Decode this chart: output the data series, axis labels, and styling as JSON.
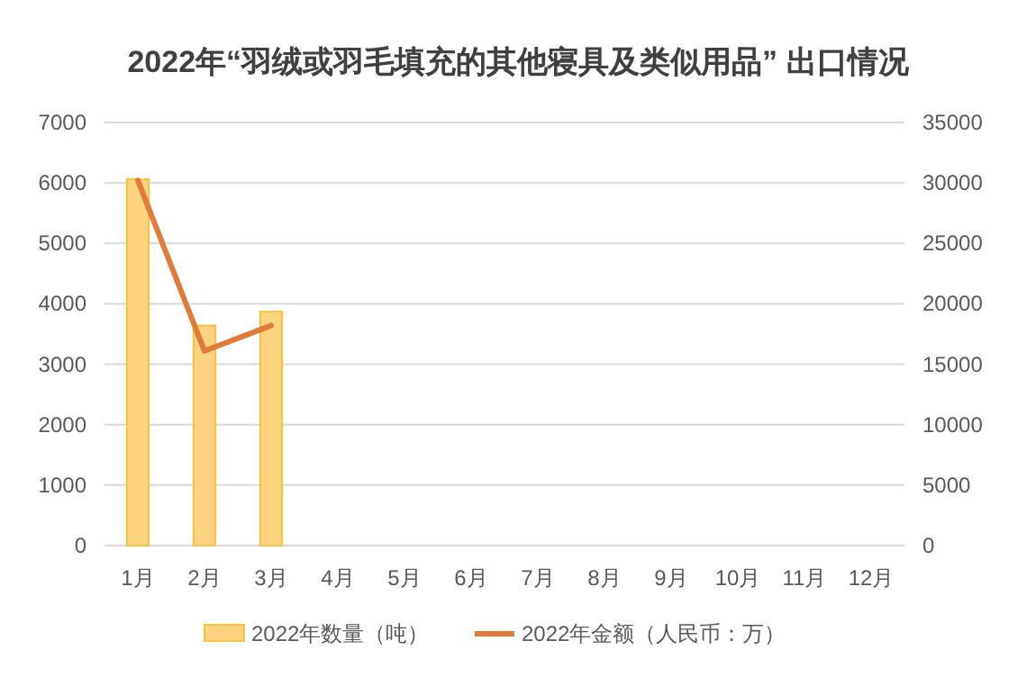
{
  "chart_data": {
    "type": "bar",
    "title": "2022年“羽绒或羽毛填充的其他寝具及类似用品” 出口情况",
    "categories": [
      "1月",
      "2月",
      "3月",
      "4月",
      "5月",
      "6月",
      "7月",
      "8月",
      "9月",
      "10月",
      "11月",
      "12月"
    ],
    "series": [
      {
        "name": "2022年数量（吨）",
        "color": "#fcd37f",
        "values": [
          6060,
          3640,
          3870,
          null,
          null,
          null,
          null,
          null,
          null,
          null,
          null,
          null
        ]
      },
      {
        "name": "2022年金额（人民币：万）",
        "type": "line",
        "axis": "y2",
        "color": "#e07b39",
        "values": [
          30200,
          16100,
          18200,
          null,
          null,
          null,
          null,
          null,
          null,
          null,
          null,
          null
        ]
      }
    ],
    "ylim": [
      0,
      7000
    ],
    "yticks": [
      0,
      1000,
      2000,
      3000,
      4000,
      5000,
      6000,
      7000
    ],
    "y2lim": [
      0,
      35000
    ],
    "y2ticks": [
      0,
      5000,
      10000,
      15000,
      20000,
      25000,
      30000,
      35000
    ],
    "grid": "y",
    "legend": "bottom"
  }
}
